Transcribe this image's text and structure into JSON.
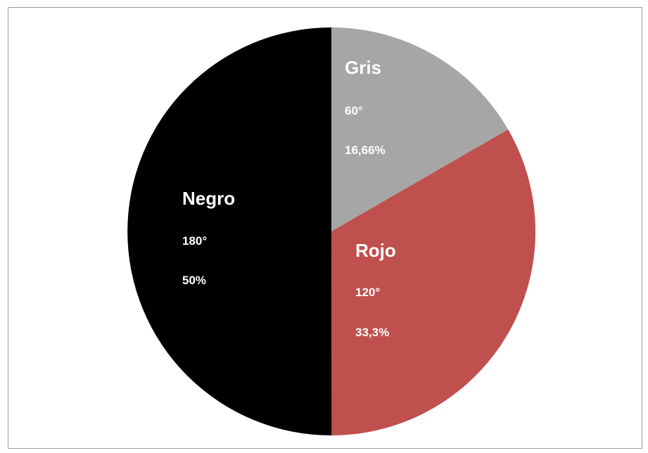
{
  "chart_data": {
    "type": "pie",
    "slices": [
      {
        "name": "Gris",
        "degrees": "60°",
        "percent": "16,66%",
        "value": 16.66,
        "color": "#a6a6a6"
      },
      {
        "name": "Rojo",
        "degrees": "120°",
        "percent": "33,3%",
        "value": 33.3,
        "color": "#c0504d"
      },
      {
        "name": "Negro",
        "degrees": "180°",
        "percent": "50%",
        "value": 50,
        "color": "#000000"
      }
    ],
    "start": "top (12 o'clock), clockwise",
    "legend": "none",
    "labels": "inside slices"
  }
}
